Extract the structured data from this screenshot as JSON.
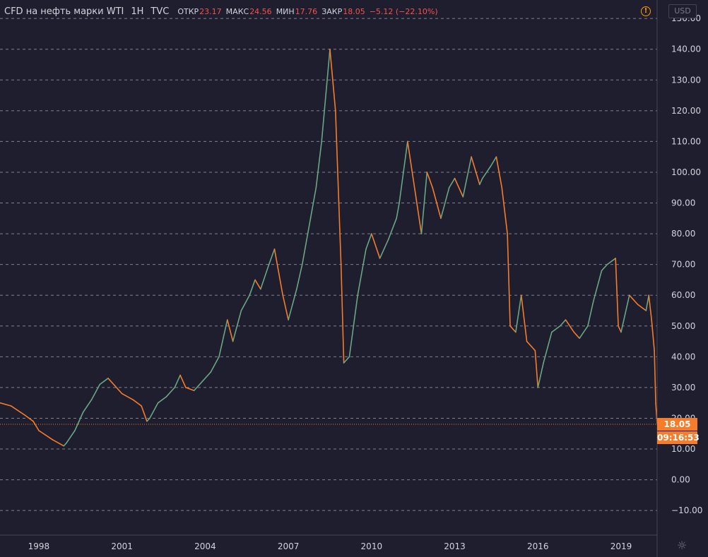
{
  "header": {
    "symbol": "CFD на нефть марки WTI",
    "timeframe": "1H",
    "exchange": "TVC",
    "open_label": "ОТКР",
    "open_value": "23.17",
    "high_label": "МАКС",
    "high_value": "24.56",
    "low_label": "МИН",
    "low_value": "17.76",
    "close_label": "ЗАКР",
    "close_value": "18.05",
    "change": "−5.12 (−22.10%)"
  },
  "currency": "USD",
  "last_price": "18.05",
  "countdown": "09:16:53",
  "icons": {
    "alert": "alert-icon",
    "settings": "gear-icon"
  },
  "colors": {
    "background": "#1e1e2f",
    "grid": "#d1d4dc",
    "up": "#6ba583",
    "down": "#f57c2a",
    "change_text": "#ef5350",
    "last_price": "#f57c2a"
  },
  "chart_data": {
    "type": "line",
    "title": "CFD на нефть марки WTI",
    "xlabel": "",
    "ylabel": "",
    "x_ticks": [
      "1998",
      "2001",
      "2004",
      "2007",
      "2010",
      "2013",
      "2016",
      "2019"
    ],
    "y_ticks": [
      "150.00",
      "140.00",
      "130.00",
      "120.00",
      "110.00",
      "100.00",
      "90.00",
      "80.00",
      "70.00",
      "60.00",
      "50.00",
      "40.00",
      "30.00",
      "20.00",
      "10.00",
      "0.00",
      "−10.00"
    ],
    "xlim": [
      1996.6,
      2020.3
    ],
    "ylim": [
      -18,
      156
    ],
    "grid": true,
    "series": [
      {
        "name": "",
        "x": [
          1996.6,
          1997.0,
          1997.5,
          1997.8,
          1998.0,
          1998.5,
          1998.9,
          1999.0,
          1999.3,
          1999.6,
          1999.9,
          2000.2,
          2000.5,
          2000.9,
          2001.0,
          2001.4,
          2001.7,
          2001.9,
          2002.0,
          2002.3,
          2002.6,
          2002.9,
          2003.1,
          2003.3,
          2003.6,
          2003.9,
          2004.2,
          2004.5,
          2004.8,
          2005.0,
          2005.3,
          2005.6,
          2005.8,
          2006.0,
          2006.3,
          2006.5,
          2006.8,
          2007.0,
          2007.3,
          2007.5,
          2007.8,
          2008.0,
          2008.2,
          2008.5,
          2008.7,
          2008.9,
          2009.0,
          2009.2,
          2009.5,
          2009.8,
          2010.0,
          2010.3,
          2010.6,
          2010.9,
          2011.0,
          2011.3,
          2011.5,
          2011.8,
          2012.0,
          2012.2,
          2012.5,
          2012.8,
          2013.0,
          2013.3,
          2013.6,
          2013.9,
          2014.0,
          2014.3,
          2014.5,
          2014.7,
          2014.9,
          2015.0,
          2015.2,
          2015.4,
          2015.6,
          2015.9,
          2016.0,
          2016.2,
          2016.5,
          2016.8,
          2017.0,
          2017.3,
          2017.5,
          2017.8,
          2018.0,
          2018.3,
          2018.5,
          2018.8,
          2018.9,
          2019.0,
          2019.3,
          2019.6,
          2019.9,
          2020.0,
          2020.1,
          2020.2,
          2020.25,
          2020.3
        ],
        "values": [
          25,
          24,
          21,
          19,
          16,
          13,
          11,
          12,
          16,
          22,
          26,
          31,
          33,
          29,
          28,
          26,
          24,
          19,
          20,
          25,
          27,
          30,
          34,
          30,
          29,
          32,
          35,
          40,
          52,
          45,
          55,
          60,
          65,
          62,
          70,
          75,
          60,
          52,
          62,
          70,
          85,
          95,
          110,
          140,
          120,
          70,
          38,
          40,
          60,
          75,
          80,
          72,
          78,
          85,
          90,
          110,
          98,
          80,
          100,
          95,
          85,
          95,
          98,
          92,
          105,
          96,
          98,
          102,
          105,
          95,
          80,
          50,
          48,
          60,
          45,
          42,
          30,
          38,
          48,
          50,
          52,
          48,
          46,
          50,
          58,
          68,
          70,
          72,
          50,
          48,
          60,
          57,
          55,
          60,
          52,
          42,
          25,
          18
        ]
      }
    ]
  }
}
